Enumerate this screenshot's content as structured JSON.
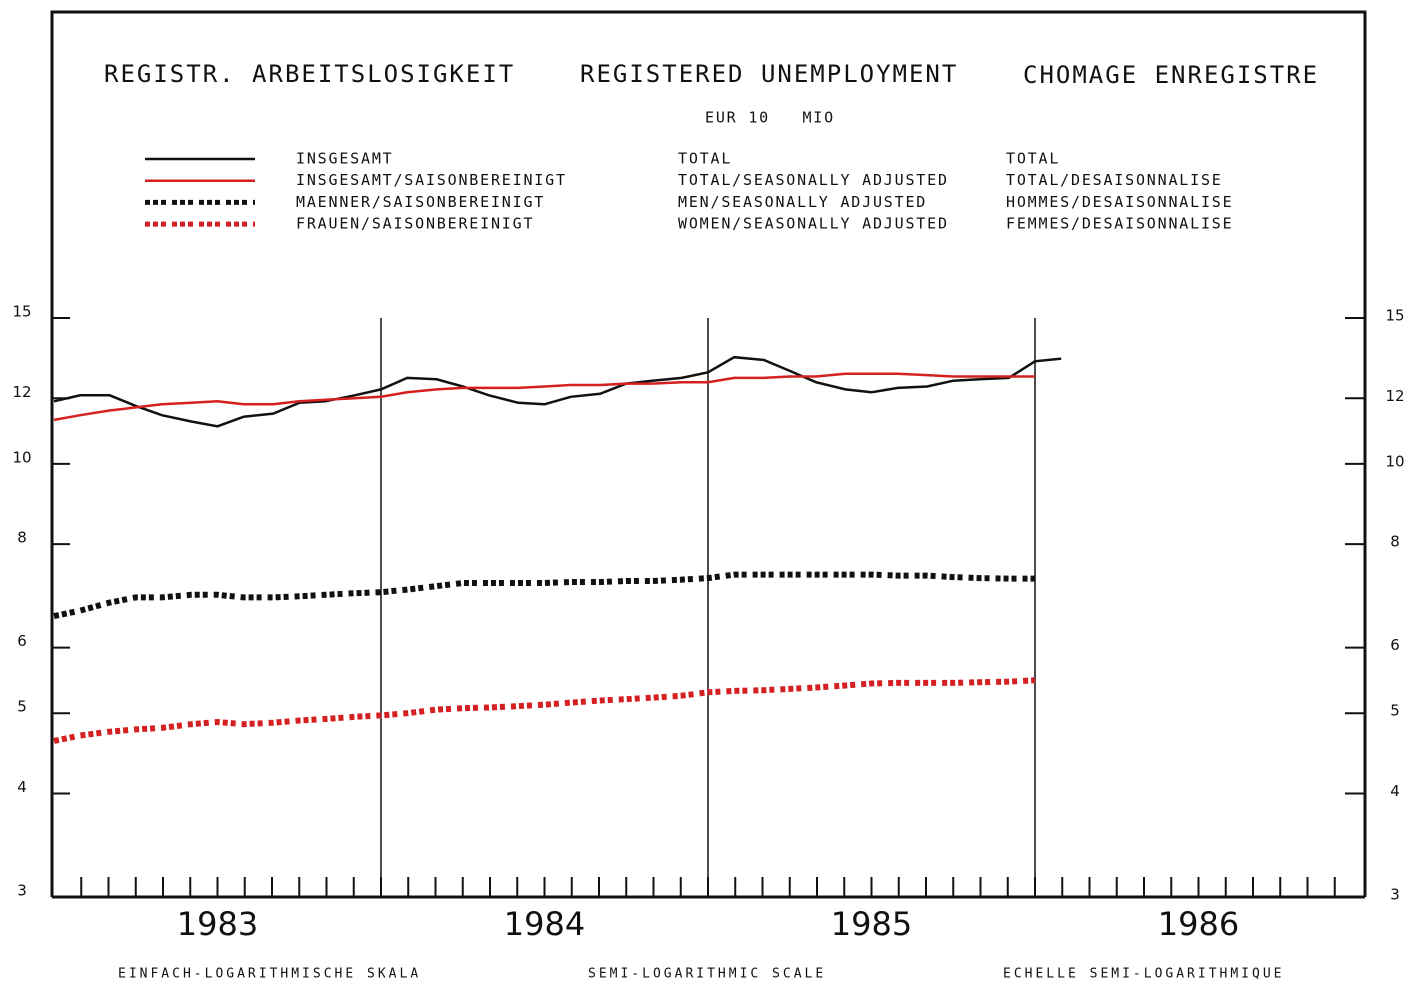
{
  "chart_data": {
    "type": "line",
    "title": [
      "REGISTR. ARBEITSLOSIGKEIT",
      "REGISTERED UNEMPLOYMENT",
      "CHOMAGE ENREGISTRE"
    ],
    "subtitle": "EUR 10   MIO",
    "x_label": [
      "EINFACH-LOGARITHMISCHE SKALA",
      "SEMI-LOGARITHMIC SCALE",
      "ECHELLE SEMI-LOGARITHMIQUE"
    ],
    "log_scale": true,
    "xlim": [
      1983,
      1987
    ],
    "xticks": [
      1983,
      1984,
      1985,
      1986
    ],
    "ylim": [
      3,
      15
    ],
    "yticks": [
      3,
      4,
      5,
      6,
      8,
      10,
      12,
      15
    ],
    "grid": true,
    "x": [
      1983,
      1983.08,
      1983.17,
      1983.25,
      1983.33,
      1983.42,
      1983.5,
      1983.58,
      1983.67,
      1983.75,
      1983.83,
      1983.92,
      1984,
      1984.08,
      1984.17,
      1984.25,
      1984.33,
      1984.42,
      1984.5,
      1984.58,
      1984.67,
      1984.75,
      1984.83,
      1984.92,
      1985,
      1985.08,
      1985.17,
      1985.25,
      1985.33,
      1985.42,
      1985.5,
      1985.58,
      1985.67,
      1985.75,
      1985.83,
      1985.92,
      1986,
      1986.08
    ],
    "series": [
      {
        "name": "INSGESAMT",
        "name_en": "TOTAL",
        "name_fr": "TOTAL",
        "color": "#111111",
        "style": "solid",
        "values": [
          11.9,
          12.1,
          12.1,
          11.75,
          11.45,
          11.25,
          11.1,
          11.4,
          11.5,
          11.85,
          11.9,
          12.1,
          12.3,
          12.7,
          12.65,
          12.4,
          12.1,
          11.85,
          11.8,
          12.05,
          12.15,
          12.5,
          12.6,
          12.7,
          12.9,
          13.45,
          13.35,
          12.95,
          12.55,
          12.3,
          12.2,
          12.35,
          12.4,
          12.6,
          12.65,
          12.7,
          13.3,
          13.4
        ]
      },
      {
        "name": "INSGESAMT/SAISONBEREINIGT",
        "name_en": "TOTAL/SEASONALLY ADJUSTED",
        "name_fr": "TOTAL/DESAISONNALISE",
        "color": "#d42020",
        "style": "solid",
        "values": [
          11.3,
          11.45,
          11.6,
          11.7,
          11.8,
          11.85,
          11.9,
          11.8,
          11.8,
          11.9,
          11.95,
          12.0,
          12.05,
          12.2,
          12.3,
          12.35,
          12.35,
          12.35,
          12.4,
          12.45,
          12.45,
          12.5,
          12.5,
          12.55,
          12.55,
          12.7,
          12.7,
          12.75,
          12.75,
          12.85,
          12.85,
          12.85,
          12.8,
          12.75,
          12.75,
          12.75,
          12.75,
          null
        ]
      },
      {
        "name": "MAENNER/SAISONBEREINIGT",
        "name_en": "MEN/SEASONALLY ADJUSTED",
        "name_fr": "HOMMES/DESAISONNALISE",
        "color": "#111111",
        "style": "dotted",
        "values": [
          6.55,
          6.65,
          6.8,
          6.9,
          6.9,
          6.95,
          6.95,
          6.9,
          6.9,
          6.92,
          6.95,
          6.98,
          7.0,
          7.05,
          7.12,
          7.18,
          7.18,
          7.18,
          7.18,
          7.2,
          7.2,
          7.22,
          7.22,
          7.25,
          7.28,
          7.35,
          7.35,
          7.35,
          7.35,
          7.35,
          7.35,
          7.33,
          7.33,
          7.3,
          7.28,
          7.27,
          7.27,
          null
        ]
      },
      {
        "name": "FRAUEN/SAISONBEREINIGT",
        "name_en": "WOMEN/SEASONALLY ADJUSTED",
        "name_fr": "FEMMES/DESAISONNALISE",
        "color": "#d42020",
        "style": "dotted",
        "values": [
          4.63,
          4.7,
          4.75,
          4.78,
          4.8,
          4.85,
          4.88,
          4.85,
          4.87,
          4.9,
          4.92,
          4.95,
          4.97,
          5.0,
          5.05,
          5.07,
          5.08,
          5.1,
          5.12,
          5.15,
          5.18,
          5.2,
          5.22,
          5.25,
          5.3,
          5.32,
          5.33,
          5.35,
          5.37,
          5.4,
          5.43,
          5.44,
          5.44,
          5.44,
          5.45,
          5.46,
          5.48,
          null
        ]
      }
    ]
  }
}
